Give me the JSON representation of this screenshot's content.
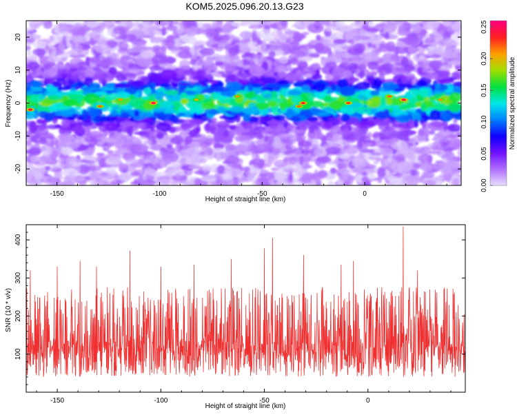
{
  "title": "KOM5.2025.096.20.13.G23",
  "colors": {
    "snr_line": "#f03030",
    "colormap": [
      "#e8e0ff",
      "#b070ff",
      "#7010ff",
      "#1000ff",
      "#0080ff",
      "#00e8e8",
      "#00e040",
      "#a0e000",
      "#ffa000",
      "#ff2020",
      "#ff0080"
    ]
  },
  "chart_data": [
    {
      "type": "heatmap",
      "name": "spectrogram",
      "xlabel": "Height of straight line (km)",
      "ylabel": "Frequency (Hz)",
      "xlim": [
        -165,
        47
      ],
      "ylim": [
        -25,
        25
      ],
      "xticks": [
        -150,
        -100,
        -50,
        0
      ],
      "yticks": [
        -20,
        -10,
        0,
        10,
        20
      ],
      "colorbar": {
        "label": "Normalized spectral amplitude",
        "range": [
          0,
          0.26
        ],
        "ticks": [
          "0.00",
          "0.05",
          "0.10",
          "0.15",
          "0.20",
          "0.25"
        ]
      },
      "signal_band_hz": [
        -5,
        6
      ],
      "peak_amplitude": 0.25,
      "hot_spots": [
        {
          "x": -163,
          "y": -2,
          "v": 0.24
        },
        {
          "x": -129,
          "y": -1,
          "v": 0.22
        },
        {
          "x": -119,
          "y": 1,
          "v": 0.21
        },
        {
          "x": -103,
          "y": 0,
          "v": 0.25
        },
        {
          "x": -82,
          "y": 1,
          "v": 0.2
        },
        {
          "x": -62,
          "y": 2,
          "v": 0.21
        },
        {
          "x": -30,
          "y": 0,
          "v": 0.24
        },
        {
          "x": -32,
          "y": -1,
          "v": 0.22
        },
        {
          "x": -8,
          "y": 0,
          "v": 0.23
        },
        {
          "x": 12,
          "y": 2,
          "v": 0.22
        },
        {
          "x": 19,
          "y": 1,
          "v": 0.25
        },
        {
          "x": 37,
          "y": 1,
          "v": 0.21
        }
      ]
    },
    {
      "type": "line",
      "name": "snr",
      "xlabel": "Height of straight line (km)",
      "ylabel": "SNR (10 * v/v)",
      "xlim": [
        -165,
        47
      ],
      "ylim": [
        0,
        440
      ],
      "xticks": [
        -150,
        -100,
        -50,
        0
      ],
      "yticks": [
        100,
        200,
        300,
        400
      ],
      "typical_range": [
        40,
        300
      ],
      "mean": 120,
      "peaks": [
        {
          "x": -163,
          "y": 320
        },
        {
          "x": -150,
          "y": 330
        },
        {
          "x": -139,
          "y": 345
        },
        {
          "x": -131,
          "y": 330
        },
        {
          "x": -115,
          "y": 372
        },
        {
          "x": -100,
          "y": 330
        },
        {
          "x": -84,
          "y": 335
        },
        {
          "x": -66,
          "y": 350
        },
        {
          "x": -50,
          "y": 378
        },
        {
          "x": -46,
          "y": 405
        },
        {
          "x": -31,
          "y": 360
        },
        {
          "x": -13,
          "y": 335
        },
        {
          "x": -7,
          "y": 345
        },
        {
          "x": 17,
          "y": 435
        },
        {
          "x": 24,
          "y": 320
        },
        {
          "x": 37,
          "y": 275
        }
      ]
    }
  ]
}
